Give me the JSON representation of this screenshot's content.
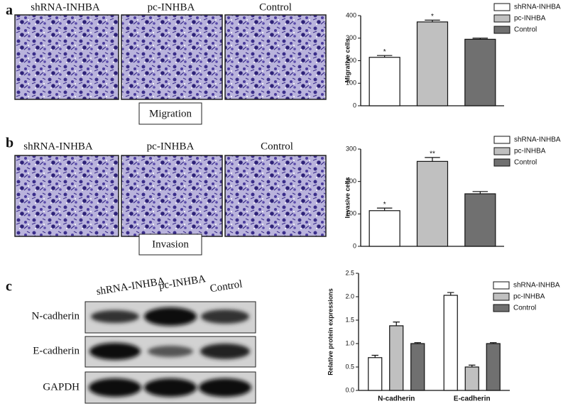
{
  "panels": [
    {
      "label": "a",
      "images": [
        "shRNA-INHBA",
        "pc-INHBA",
        "Control"
      ],
      "caption": "Migration"
    },
    {
      "label": "b",
      "images": [
        "shRNA-INHBA",
        "pc-INHBA",
        "Control"
      ],
      "caption": "Invasion"
    },
    {
      "label": "c",
      "columns": [
        "shRNA-INHBA",
        "pc-INHBA",
        "Control"
      ],
      "rows": [
        "N-cadherin",
        "E-cadherin",
        "GAPDH"
      ]
    }
  ],
  "chart_data": [
    {
      "type": "bar",
      "ylabel": "Migrative cells",
      "ylim": [
        0,
        400
      ],
      "yticks": [
        0,
        100,
        200,
        300,
        400
      ],
      "series": [
        {
          "name": "shRNA-INHBA",
          "color": "#ffffff",
          "values": [
            215
          ],
          "errors": [
            8
          ],
          "annotation": "*"
        },
        {
          "name": "pc-INHBA",
          "color": "#c0c0c0",
          "values": [
            372
          ],
          "errors": [
            8
          ],
          "annotation": "*"
        },
        {
          "name": "Control",
          "color": "#707070",
          "values": [
            295
          ],
          "errors": [
            5
          ]
        }
      ]
    },
    {
      "type": "bar",
      "ylabel": "Invasive cells",
      "ylim": [
        0,
        300
      ],
      "yticks": [
        0,
        100,
        200,
        300
      ],
      "series": [
        {
          "name": "shRNA-INHBA",
          "color": "#ffffff",
          "values": [
            110
          ],
          "errors": [
            8
          ],
          "annotation": "*"
        },
        {
          "name": "pc-INHBA",
          "color": "#c0c0c0",
          "values": [
            262
          ],
          "errors": [
            12
          ],
          "annotation": "**"
        },
        {
          "name": "Control",
          "color": "#707070",
          "values": [
            162
          ],
          "errors": [
            7
          ]
        }
      ]
    },
    {
      "type": "bar",
      "ylabel": "Relative protein expressions",
      "ylim": [
        0,
        2.5
      ],
      "yticks": [
        {
          "value": 0,
          "label": "0.0"
        },
        0.5,
        {
          "value": 1,
          "label": "1.0"
        },
        1.5,
        {
          "value": 2,
          "label": "2.0"
        },
        2.5
      ],
      "categories": [
        "N-cadherin",
        "E-cadherin"
      ],
      "series": [
        {
          "name": "shRNA-INHBA",
          "color": "#ffffff",
          "values": [
            0.7,
            2.03
          ],
          "errors": [
            0.05,
            0.06
          ]
        },
        {
          "name": "pc-INHBA",
          "color": "#c0c0c0",
          "values": [
            1.38,
            0.5
          ],
          "errors": [
            0.08,
            0.04
          ]
        },
        {
          "name": "Control",
          "color": "#707070",
          "values": [
            1.0,
            1.0
          ],
          "errors": [
            0.02,
            0.02
          ]
        }
      ]
    }
  ]
}
